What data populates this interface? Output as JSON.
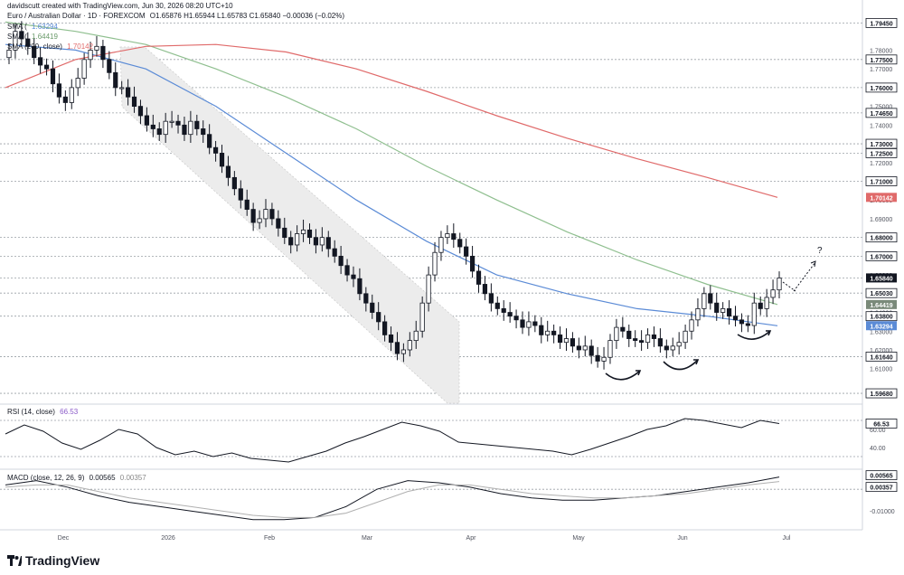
{
  "header": {
    "author_line": "davidscutt created with TradingView.com, Jun 30, 2026 08:20 UTC+10",
    "symbol_line": "Euro / Australian Dollar · 1D · FOREXCOM",
    "ohlc": "O1.65876 H1.65944 L1.65783 C1.65840 −0.00036 (−0.02%)",
    "sma1_label": "SMA (",
    "sma1_value": "1.63294",
    "sma2_label": "SMA (",
    "sma2_value": "1.64419",
    "sma3_label": "SMA (200, close)",
    "sma3_value": "1.70142",
    "rsi_label": "RSI (14, close)",
    "rsi_value": "66.53",
    "macd_label": "MACD (close, 12, 26, 9)",
    "macd_value": "0.00565",
    "macd_signal_value": "0.00357"
  },
  "colors": {
    "up": "#ffffff",
    "down": "#131722",
    "sma_blue": "#5b8bd6",
    "sma_green": "#8fbf8f",
    "sma_red": "#e06a6a",
    "grid_dash": "#9aa0a6",
    "channel": "#cfcfcf"
  },
  "branding": "TradingView",
  "time_labels": [
    "Dec",
    "2026",
    "Feb",
    "Mar",
    "Apr",
    "May",
    "Jun",
    "Jul"
  ],
  "annotation": "?",
  "chart_data": [
    {
      "type": "candlestick",
      "title": "Euro / Australian Dollar · 1D · FOREXCOM",
      "ylim": [
        1.592,
        1.8
      ],
      "y_ticks": [
        1.78,
        1.77,
        1.75,
        1.74,
        1.72,
        1.7,
        1.69,
        1.66,
        1.64,
        1.63,
        1.62,
        1.61
      ],
      "y_levels": [
        1.7945,
        1.775,
        1.76,
        1.7465,
        1.73,
        1.725,
        1.71,
        1.68,
        1.67,
        1.6584,
        1.6503,
        1.638,
        1.6164,
        1.5968
      ],
      "level_tags": [
        {
          "value": 1.7945,
          "label": "1.79450"
        },
        {
          "value": 1.775,
          "label": "1.77500"
        },
        {
          "value": 1.76,
          "label": "1.76000"
        },
        {
          "value": 1.7465,
          "label": "1.74650"
        },
        {
          "value": 1.73,
          "label": "1.73000"
        },
        {
          "value": 1.725,
          "label": "1.72500"
        },
        {
          "value": 1.71,
          "label": "1.71000"
        },
        {
          "value": 1.7014,
          "label": "1.70142",
          "color": "#e06a6a"
        },
        {
          "value": 1.68,
          "label": "1.68000"
        },
        {
          "value": 1.67,
          "label": "1.67000"
        },
        {
          "value": 1.6584,
          "label": "1.65840",
          "color": "#131722"
        },
        {
          "value": 1.6503,
          "label": "1.65030"
        },
        {
          "value": 1.6442,
          "label": "1.64419",
          "color": "#7a8a7a"
        },
        {
          "value": 1.638,
          "label": "1.63800"
        },
        {
          "value": 1.6329,
          "label": "1.63294",
          "color": "#5b8bd6"
        },
        {
          "value": 1.6164,
          "label": "1.61640"
        },
        {
          "value": 1.5968,
          "label": "1.59680"
        }
      ],
      "close_path": [
        1.78,
        1.79,
        1.786,
        1.782,
        1.776,
        1.772,
        1.77,
        1.762,
        1.755,
        1.752,
        1.76,
        1.765,
        1.775,
        1.78,
        1.782,
        1.775,
        1.768,
        1.76,
        1.76,
        1.755,
        1.75,
        1.745,
        1.74,
        1.738,
        1.735,
        1.742,
        1.742,
        1.74,
        1.735,
        1.742,
        1.738,
        1.735,
        1.728,
        1.725,
        1.718,
        1.712,
        1.706,
        1.7,
        1.695,
        1.688,
        1.69,
        1.695,
        1.69,
        1.685,
        1.68,
        1.676,
        1.682,
        1.684,
        1.68,
        1.676,
        1.68,
        1.674,
        1.67,
        1.665,
        1.66,
        1.658,
        1.65,
        1.645,
        1.64,
        1.635,
        1.628,
        1.624,
        1.618,
        1.62,
        1.625,
        1.63,
        1.645,
        1.66,
        1.672,
        1.68,
        1.682,
        1.679,
        1.675,
        1.67,
        1.662,
        1.655,
        1.65,
        1.645,
        1.642,
        1.64,
        1.638,
        1.636,
        1.632,
        1.635,
        1.633,
        1.628,
        1.63,
        1.628,
        1.624,
        1.626,
        1.622,
        1.62,
        1.622,
        1.617,
        1.614,
        1.616,
        1.625,
        1.632,
        1.63,
        1.626,
        1.625,
        1.624,
        1.628,
        1.626,
        1.622,
        1.62,
        1.622,
        1.624,
        1.63,
        1.636,
        1.642,
        1.65,
        1.645,
        1.64,
        1.642,
        1.638,
        1.636,
        1.634,
        1.633,
        1.645,
        1.642,
        1.648,
        1.652,
        1.6584
      ],
      "series": [
        {
          "name": "SMA",
          "color": "#5b8bd6",
          "values": [
            1.783,
            1.78,
            1.77,
            1.75,
            1.725,
            1.7,
            1.678,
            1.66,
            1.65,
            1.642,
            1.638,
            1.6329
          ]
        },
        {
          "name": "SMA",
          "color": "#8fbf8f",
          "values": [
            1.795,
            1.79,
            1.783,
            1.77,
            1.755,
            1.738,
            1.718,
            1.7,
            1.683,
            1.668,
            1.655,
            1.6442
          ]
        },
        {
          "name": "SMA (200, close)",
          "color": "#e06a6a",
          "values": [
            1.76,
            1.775,
            1.782,
            1.783,
            1.779,
            1.77,
            1.758,
            1.745,
            1.733,
            1.722,
            1.712,
            1.7014
          ]
        }
      ]
    },
    {
      "type": "line",
      "title": "RSI (14, close)",
      "ylim": [
        20,
        80
      ],
      "y_ticks": [
        40,
        60
      ],
      "reference_levels": [
        70,
        30
      ],
      "values": [
        55,
        65,
        58,
        45,
        38,
        48,
        60,
        55,
        40,
        32,
        36,
        30,
        34,
        28,
        26,
        24,
        30,
        36,
        45,
        52,
        60,
        68,
        64,
        58,
        46,
        44,
        42,
        40,
        38,
        36,
        32,
        38,
        45,
        52,
        60,
        64,
        72,
        70,
        66,
        62,
        70,
        66.53
      ],
      "tag": {
        "value": 66.53,
        "label": "66.53"
      }
    },
    {
      "type": "line",
      "title": "MACD (close, 12, 26, 9)",
      "ylim": [
        -0.017,
        0.008
      ],
      "y_ticks": [
        0.0,
        -0.01
      ],
      "series": [
        {
          "name": "MACD",
          "color": "#131722",
          "values": [
            0.002,
            0.004,
            0.001,
            -0.003,
            -0.006,
            -0.008,
            -0.01,
            -0.012,
            -0.014,
            -0.014,
            -0.013,
            -0.008,
            0.0,
            0.004,
            0.003,
            0.001,
            -0.002,
            -0.004,
            -0.005,
            -0.005,
            -0.004,
            -0.003,
            -0.001,
            0.001,
            0.003,
            0.00565
          ]
        },
        {
          "name": "Signal",
          "color": "#b0b0b0",
          "values": [
            0.001,
            0.002,
            0.002,
            -0.001,
            -0.004,
            -0.006,
            -0.008,
            -0.01,
            -0.012,
            -0.013,
            -0.013,
            -0.011,
            -0.006,
            -0.001,
            0.002,
            0.002,
            0.0,
            -0.002,
            -0.003,
            -0.004,
            -0.004,
            -0.003,
            -0.002,
            0.0,
            0.002,
            0.00357
          ]
        }
      ],
      "tags": [
        {
          "value": 0.00565,
          "label": "0.00565"
        },
        {
          "value": 0.00357,
          "label": "0.00357"
        }
      ]
    }
  ]
}
